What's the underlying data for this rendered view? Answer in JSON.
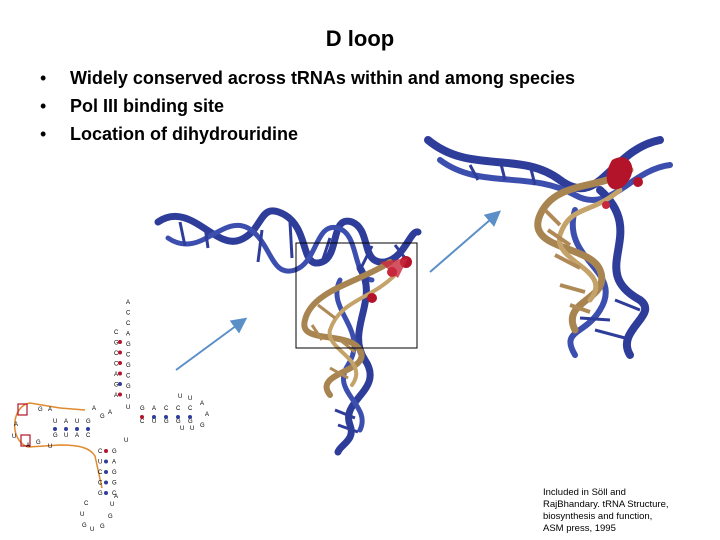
{
  "slide": {
    "title": "D loop",
    "bullets": [
      "Widely conserved across tRNAs within and among species",
      "Pol III binding site",
      "Location of dihydrouridine"
    ],
    "citation_lines": [
      "Included in Söll and",
      "RajBhandary. tRNA Structure,",
      "biosynthesis and function,",
      "ASM press, 1995"
    ]
  },
  "colors": {
    "backbone_blue": "#2f3d9a",
    "dloop_tan": "#a88450",
    "highlight_red": "#b3142a",
    "arrow_blue": "#5b8fc8",
    "diagram_orange": "#e08a2e"
  },
  "cloverleaf": {
    "acceptor_stem": [
      "A",
      "C",
      "C",
      "A",
      "G",
      "C",
      "G",
      "C",
      "G",
      "U",
      "U"
    ],
    "acceptor_pair": [
      "C",
      "G",
      "C",
      "C",
      "A",
      "G",
      "A"
    ],
    "d_stem_top": [
      "U",
      "A",
      "U",
      "G"
    ],
    "d_stem_bottom": [
      "G",
      "U",
      "A",
      "C"
    ],
    "t_stem_top": [
      "G",
      "A",
      "C",
      "C",
      "C"
    ],
    "t_stem_bottom": [
      "C",
      "U",
      "G",
      "G",
      "G"
    ],
    "anticodon_stem": [
      "C",
      "U",
      "C",
      "C",
      "G"
    ],
    "anticodon_pair": [
      "G",
      "A",
      "G",
      "G",
      "C"
    ],
    "anticodon_loop": [
      "C",
      "U",
      "G",
      "U",
      "G",
      "G",
      "U",
      "A"
    ],
    "d_loop": [
      "G",
      "A",
      "A",
      "U",
      "A",
      "G",
      "U"
    ],
    "t_loop": [
      "U",
      "U",
      "A",
      "A",
      "G",
      "U",
      "U"
    ],
    "variable": [
      "A",
      "G",
      "A",
      "U"
    ]
  }
}
